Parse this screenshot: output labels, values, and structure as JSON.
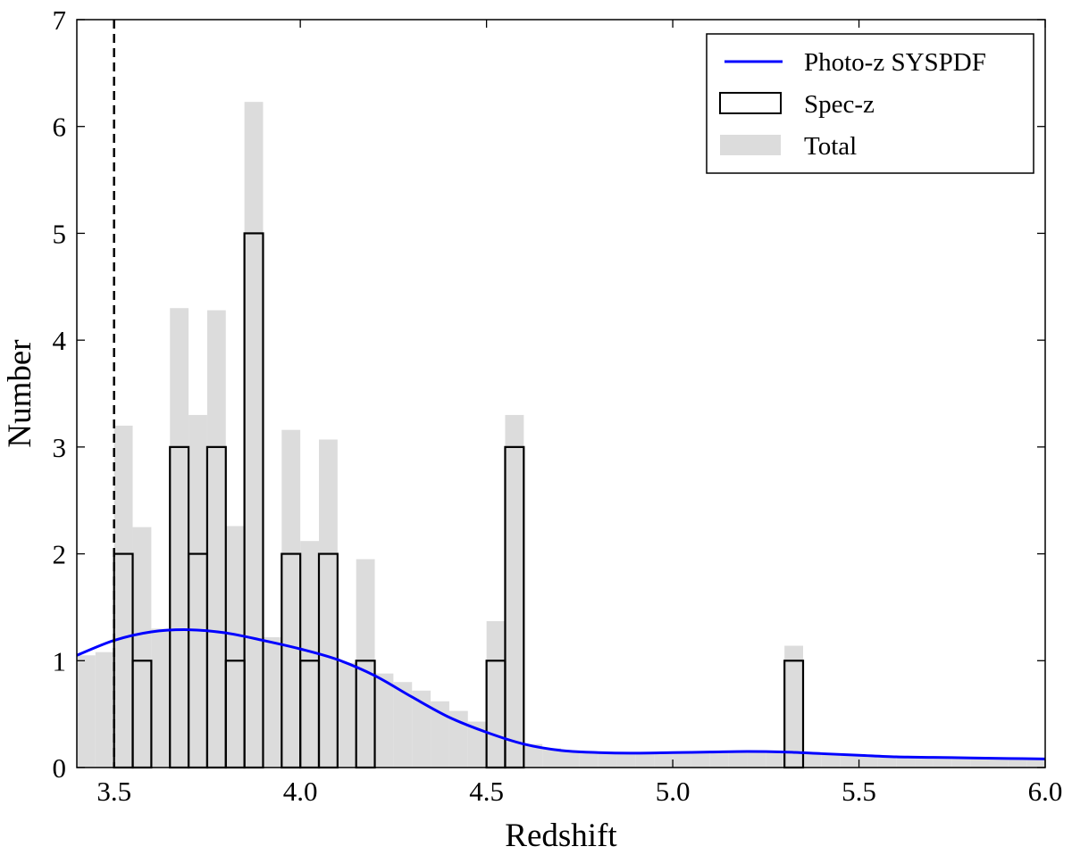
{
  "chart_data": {
    "type": "histogram",
    "title": "",
    "xlabel": "Redshift",
    "ylabel": "Number",
    "xlim": [
      3.4,
      6.0
    ],
    "ylim": [
      0,
      7
    ],
    "xticks": [
      3.5,
      4.0,
      4.5,
      5.0,
      5.5,
      6.0
    ],
    "xtick_labels": [
      "3.5",
      "4.0",
      "4.5",
      "5.0",
      "5.5",
      "6.0"
    ],
    "yticks": [
      0,
      1,
      2,
      3,
      4,
      5,
      6,
      7
    ],
    "ytick_labels": [
      "0",
      "1",
      "2",
      "3",
      "4",
      "5",
      "6",
      "7"
    ],
    "bin_width": 0.05,
    "series": [
      {
        "name": "Total",
        "style": "filled-bars",
        "color": "#dcdcdc",
        "bins": [
          [
            3.4,
            1.05
          ],
          [
            3.45,
            1.08
          ],
          [
            3.5,
            3.2
          ],
          [
            3.55,
            2.25
          ],
          [
            3.6,
            1.3
          ],
          [
            3.65,
            4.3
          ],
          [
            3.7,
            3.3
          ],
          [
            3.75,
            4.28
          ],
          [
            3.8,
            2.26
          ],
          [
            3.85,
            6.23
          ],
          [
            3.9,
            1.22
          ],
          [
            3.95,
            3.16
          ],
          [
            4.0,
            2.12
          ],
          [
            4.05,
            3.07
          ],
          [
            4.1,
            0.98
          ],
          [
            4.15,
            1.95
          ],
          [
            4.2,
            0.88
          ],
          [
            4.25,
            0.8
          ],
          [
            4.3,
            0.72
          ],
          [
            4.35,
            0.62
          ],
          [
            4.4,
            0.53
          ],
          [
            4.45,
            0.43
          ],
          [
            4.5,
            1.37
          ],
          [
            4.55,
            3.3
          ],
          [
            4.6,
            0.22
          ],
          [
            4.65,
            0.18
          ],
          [
            4.7,
            0.16
          ],
          [
            4.75,
            0.15
          ],
          [
            4.8,
            0.14
          ],
          [
            4.85,
            0.14
          ],
          [
            4.9,
            0.14
          ],
          [
            4.95,
            0.14
          ],
          [
            5.0,
            0.14
          ],
          [
            5.05,
            0.15
          ],
          [
            5.1,
            0.15
          ],
          [
            5.15,
            0.15
          ],
          [
            5.2,
            0.15
          ],
          [
            5.25,
            0.15
          ],
          [
            5.3,
            1.14
          ],
          [
            5.35,
            0.14
          ],
          [
            5.4,
            0.13
          ],
          [
            5.45,
            0.12
          ],
          [
            5.5,
            0.11
          ],
          [
            5.55,
            0.11
          ],
          [
            5.6,
            0.1
          ],
          [
            5.65,
            0.1
          ],
          [
            5.7,
            0.1
          ],
          [
            5.75,
            0.09
          ],
          [
            5.8,
            0.09
          ],
          [
            5.85,
            0.09
          ],
          [
            5.9,
            0.09
          ],
          [
            5.95,
            0.08
          ]
        ]
      },
      {
        "name": "Spec-z",
        "style": "step-outline",
        "color": "#000000",
        "bins": [
          [
            3.5,
            2
          ],
          [
            3.55,
            1
          ],
          [
            3.65,
            3
          ],
          [
            3.7,
            2
          ],
          [
            3.75,
            3
          ],
          [
            3.8,
            1
          ],
          [
            3.85,
            5
          ],
          [
            3.95,
            2
          ],
          [
            4.0,
            1
          ],
          [
            4.05,
            2
          ],
          [
            4.15,
            1
          ],
          [
            4.5,
            1
          ],
          [
            4.55,
            3
          ],
          [
            5.3,
            1
          ]
        ]
      },
      {
        "name": "Photo-z SYSPDF",
        "style": "line",
        "color": "#0000ff",
        "x": [
          3.4,
          3.5,
          3.6,
          3.7,
          3.8,
          3.9,
          4.0,
          4.1,
          4.2,
          4.3,
          4.4,
          4.5,
          4.6,
          4.7,
          4.8,
          4.9,
          5.0,
          5.1,
          5.2,
          5.3,
          5.4,
          5.5,
          5.6,
          5.7,
          5.8,
          5.9,
          6.0
        ],
        "y": [
          1.05,
          1.19,
          1.27,
          1.29,
          1.26,
          1.19,
          1.11,
          1.01,
          0.86,
          0.66,
          0.47,
          0.33,
          0.22,
          0.16,
          0.14,
          0.135,
          0.14,
          0.145,
          0.15,
          0.145,
          0.13,
          0.115,
          0.1,
          0.095,
          0.09,
          0.085,
          0.08
        ]
      }
    ],
    "annotations": [
      {
        "type": "vline",
        "x": 3.5,
        "style": "dashed",
        "color": "#000000"
      }
    ],
    "legend": {
      "position": "top-right",
      "entries": [
        "Photo-z SYSPDF",
        "Spec-z",
        "Total"
      ]
    }
  }
}
